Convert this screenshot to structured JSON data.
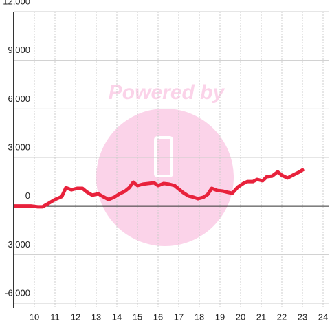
{
  "chart_data": {
    "type": "line",
    "watermark": "Powered by",
    "x": [
      9.0,
      9.83,
      10.17,
      10.4,
      10.67,
      11.0,
      11.33,
      11.53,
      11.8,
      12.07,
      12.33,
      12.53,
      12.8,
      13.1,
      13.33,
      13.6,
      13.87,
      14.13,
      14.4,
      14.6,
      14.8,
      15.0,
      15.27,
      15.53,
      15.8,
      16.0,
      16.27,
      16.53,
      16.8,
      17.0,
      17.2,
      17.47,
      17.73,
      17.93,
      18.2,
      18.4,
      18.6,
      18.87,
      19.13,
      19.4,
      19.6,
      19.87,
      20.13,
      20.33,
      20.6,
      20.8,
      21.07,
      21.27,
      21.53,
      21.8,
      22.0,
      22.27,
      22.53,
      22.8,
      23.07
    ],
    "values": [
      0,
      0,
      -50,
      -50,
      150,
      400,
      580,
      1130,
      1000,
      1090,
      1090,
      880,
      670,
      750,
      580,
      400,
      540,
      750,
      920,
      1130,
      1470,
      1260,
      1350,
      1390,
      1430,
      1260,
      1390,
      1350,
      1260,
      1050,
      840,
      620,
      540,
      450,
      540,
      710,
      1090,
      960,
      920,
      840,
      790,
      1170,
      1390,
      1510,
      1510,
      1640,
      1560,
      1810,
      1850,
      2110,
      1900,
      1730,
      1900,
      2070,
      2280
    ],
    "color": "#e8223c",
    "xlim": [
      9,
      24.3
    ],
    "xticks": [
      10,
      11,
      12,
      13,
      14,
      15,
      16,
      17,
      18,
      19,
      20,
      21,
      22,
      23,
      24
    ],
    "ylim": [
      -6000,
      12000
    ],
    "yticks": [
      {
        "value": -6000,
        "label": "-6,000"
      },
      {
        "value": -3000,
        "label": "-3,000"
      },
      0,
      {
        "value": 3000,
        "label": "3,000"
      },
      {
        "value": 6000,
        "label": "6,000"
      },
      {
        "value": 9000,
        "label": "9,000"
      },
      {
        "value": 12000,
        "label": "12,000"
      }
    ],
    "grid": true
  }
}
